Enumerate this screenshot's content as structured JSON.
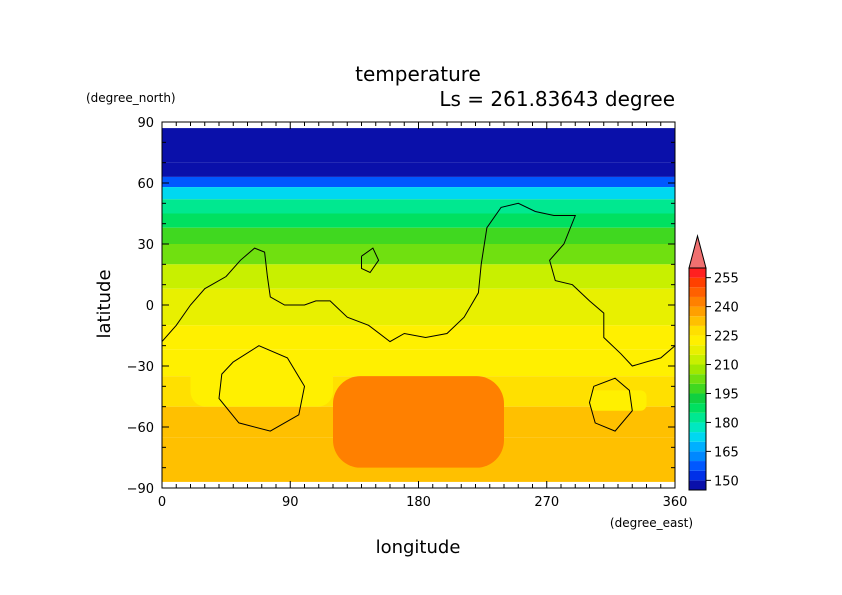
{
  "chart_data": {
    "type": "heatmap",
    "title": "temperature",
    "subtitle": "Ls = 261.83643 degree",
    "xlabel": "longitude",
    "ylabel": "latitude",
    "x_unit": "(degree_east)",
    "y_unit": "(degree_north)",
    "xlim": [
      0,
      360
    ],
    "ylim": [
      -90,
      90
    ],
    "x_ticks": [
      0,
      90,
      180,
      270,
      360
    ],
    "y_ticks": [
      -90,
      -60,
      -30,
      0,
      30,
      60,
      90
    ],
    "x_tick_labels": [
      "0",
      "90",
      "180",
      "270",
      "360"
    ],
    "y_tick_labels": [
      "−90",
      "−60",
      "−30",
      "0",
      "30",
      "60",
      "90"
    ],
    "data_lat_range": [
      -87,
      87
    ],
    "colorbar": {
      "levels": [
        145,
        150,
        155,
        160,
        165,
        170,
        175,
        180,
        185,
        190,
        195,
        200,
        205,
        210,
        215,
        220,
        225,
        230,
        235,
        240,
        245,
        250,
        255,
        260
      ],
      "tick_values": [
        150,
        165,
        180,
        195,
        210,
        225,
        240,
        255
      ],
      "tick_labels": [
        "150",
        "165",
        "180",
        "195",
        "210",
        "225",
        "240",
        "255"
      ],
      "colors": [
        "#0a10aa",
        "#0030e8",
        "#0058ff",
        "#0088ff",
        "#00b0ff",
        "#00d8f0",
        "#00e8c0",
        "#00e890",
        "#00e060",
        "#10d040",
        "#40d820",
        "#70e010",
        "#a0e800",
        "#c8f000",
        "#e8f000",
        "#fff000",
        "#ffe000",
        "#ffc000",
        "#ffa000",
        "#ff8000",
        "#ff6000",
        "#ff4000",
        "#ff2020"
      ],
      "over_color": "#f07070"
    },
    "temperature_by_lat": [
      {
        "lat": 87,
        "value": 146
      },
      {
        "lat": 70,
        "value": 148
      },
      {
        "lat": 63,
        "value": 156
      },
      {
        "lat": 58,
        "value": 172
      },
      {
        "lat": 52,
        "value": 182
      },
      {
        "lat": 45,
        "value": 188
      },
      {
        "lat": 38,
        "value": 195
      },
      {
        "lat": 30,
        "value": 204
      },
      {
        "lat": 20,
        "value": 212
      },
      {
        "lat": 8,
        "value": 216
      },
      {
        "lat": 0,
        "value": 218
      },
      {
        "lat": -10,
        "value": 221
      },
      {
        "lat": -22,
        "value": 224
      },
      {
        "lat": -35,
        "value": 229
      },
      {
        "lat": -50,
        "value": 232
      },
      {
        "lat": -65,
        "value": 230
      },
      {
        "lat": -87,
        "value": 229
      }
    ],
    "warm_patches": [
      {
        "lon": [
          20,
          120
        ],
        "lat": [
          -25,
          -50
        ],
        "value": 222
      },
      {
        "lon": [
          300,
          340
        ],
        "lat": [
          -42,
          -52
        ],
        "value": 224
      },
      {
        "lon": [
          120,
          240
        ],
        "lat": [
          -35,
          -80
        ],
        "value": 240
      }
    ],
    "contours": [
      [
        [
          0,
          -18
        ],
        [
          10,
          -10
        ],
        [
          20,
          0
        ],
        [
          30,
          8
        ],
        [
          45,
          14
        ],
        [
          55,
          22
        ],
        [
          65,
          28
        ],
        [
          72,
          26
        ],
        [
          74,
          14
        ],
        [
          76,
          4
        ],
        [
          86,
          0
        ],
        [
          100,
          0
        ],
        [
          108,
          2
        ],
        [
          118,
          2
        ],
        [
          130,
          -6
        ],
        [
          145,
          -10
        ],
        [
          160,
          -18
        ],
        [
          170,
          -14
        ],
        [
          185,
          -16
        ],
        [
          200,
          -14
        ],
        [
          212,
          -6
        ],
        [
          222,
          6
        ],
        [
          224,
          20
        ],
        [
          228,
          38
        ],
        [
          238,
          48
        ],
        [
          250,
          50
        ],
        [
          262,
          46
        ],
        [
          275,
          44
        ],
        [
          290,
          44
        ],
        [
          282,
          30
        ],
        [
          272,
          22
        ],
        [
          276,
          12
        ],
        [
          288,
          10
        ],
        [
          300,
          2
        ],
        [
          310,
          -4
        ],
        [
          310,
          -16
        ],
        [
          322,
          -24
        ],
        [
          330,
          -30
        ],
        [
          340,
          -28
        ],
        [
          350,
          -26
        ],
        [
          360,
          -20
        ]
      ],
      [
        [
          140,
          24
        ],
        [
          148,
          28
        ],
        [
          152,
          22
        ],
        [
          146,
          16
        ],
        [
          140,
          18
        ],
        [
          140,
          24
        ]
      ],
      [
        [
          50,
          -28
        ],
        [
          68,
          -20
        ],
        [
          88,
          -26
        ],
        [
          100,
          -40
        ],
        [
          96,
          -54
        ],
        [
          76,
          -62
        ],
        [
          54,
          -58
        ],
        [
          40,
          -46
        ],
        [
          42,
          -34
        ],
        [
          50,
          -28
        ]
      ],
      [
        [
          303,
          -40
        ],
        [
          318,
          -36
        ],
        [
          328,
          -42
        ],
        [
          330,
          -52
        ],
        [
          318,
          -62
        ],
        [
          304,
          -58
        ],
        [
          300,
          -48
        ],
        [
          303,
          -40
        ]
      ]
    ]
  }
}
